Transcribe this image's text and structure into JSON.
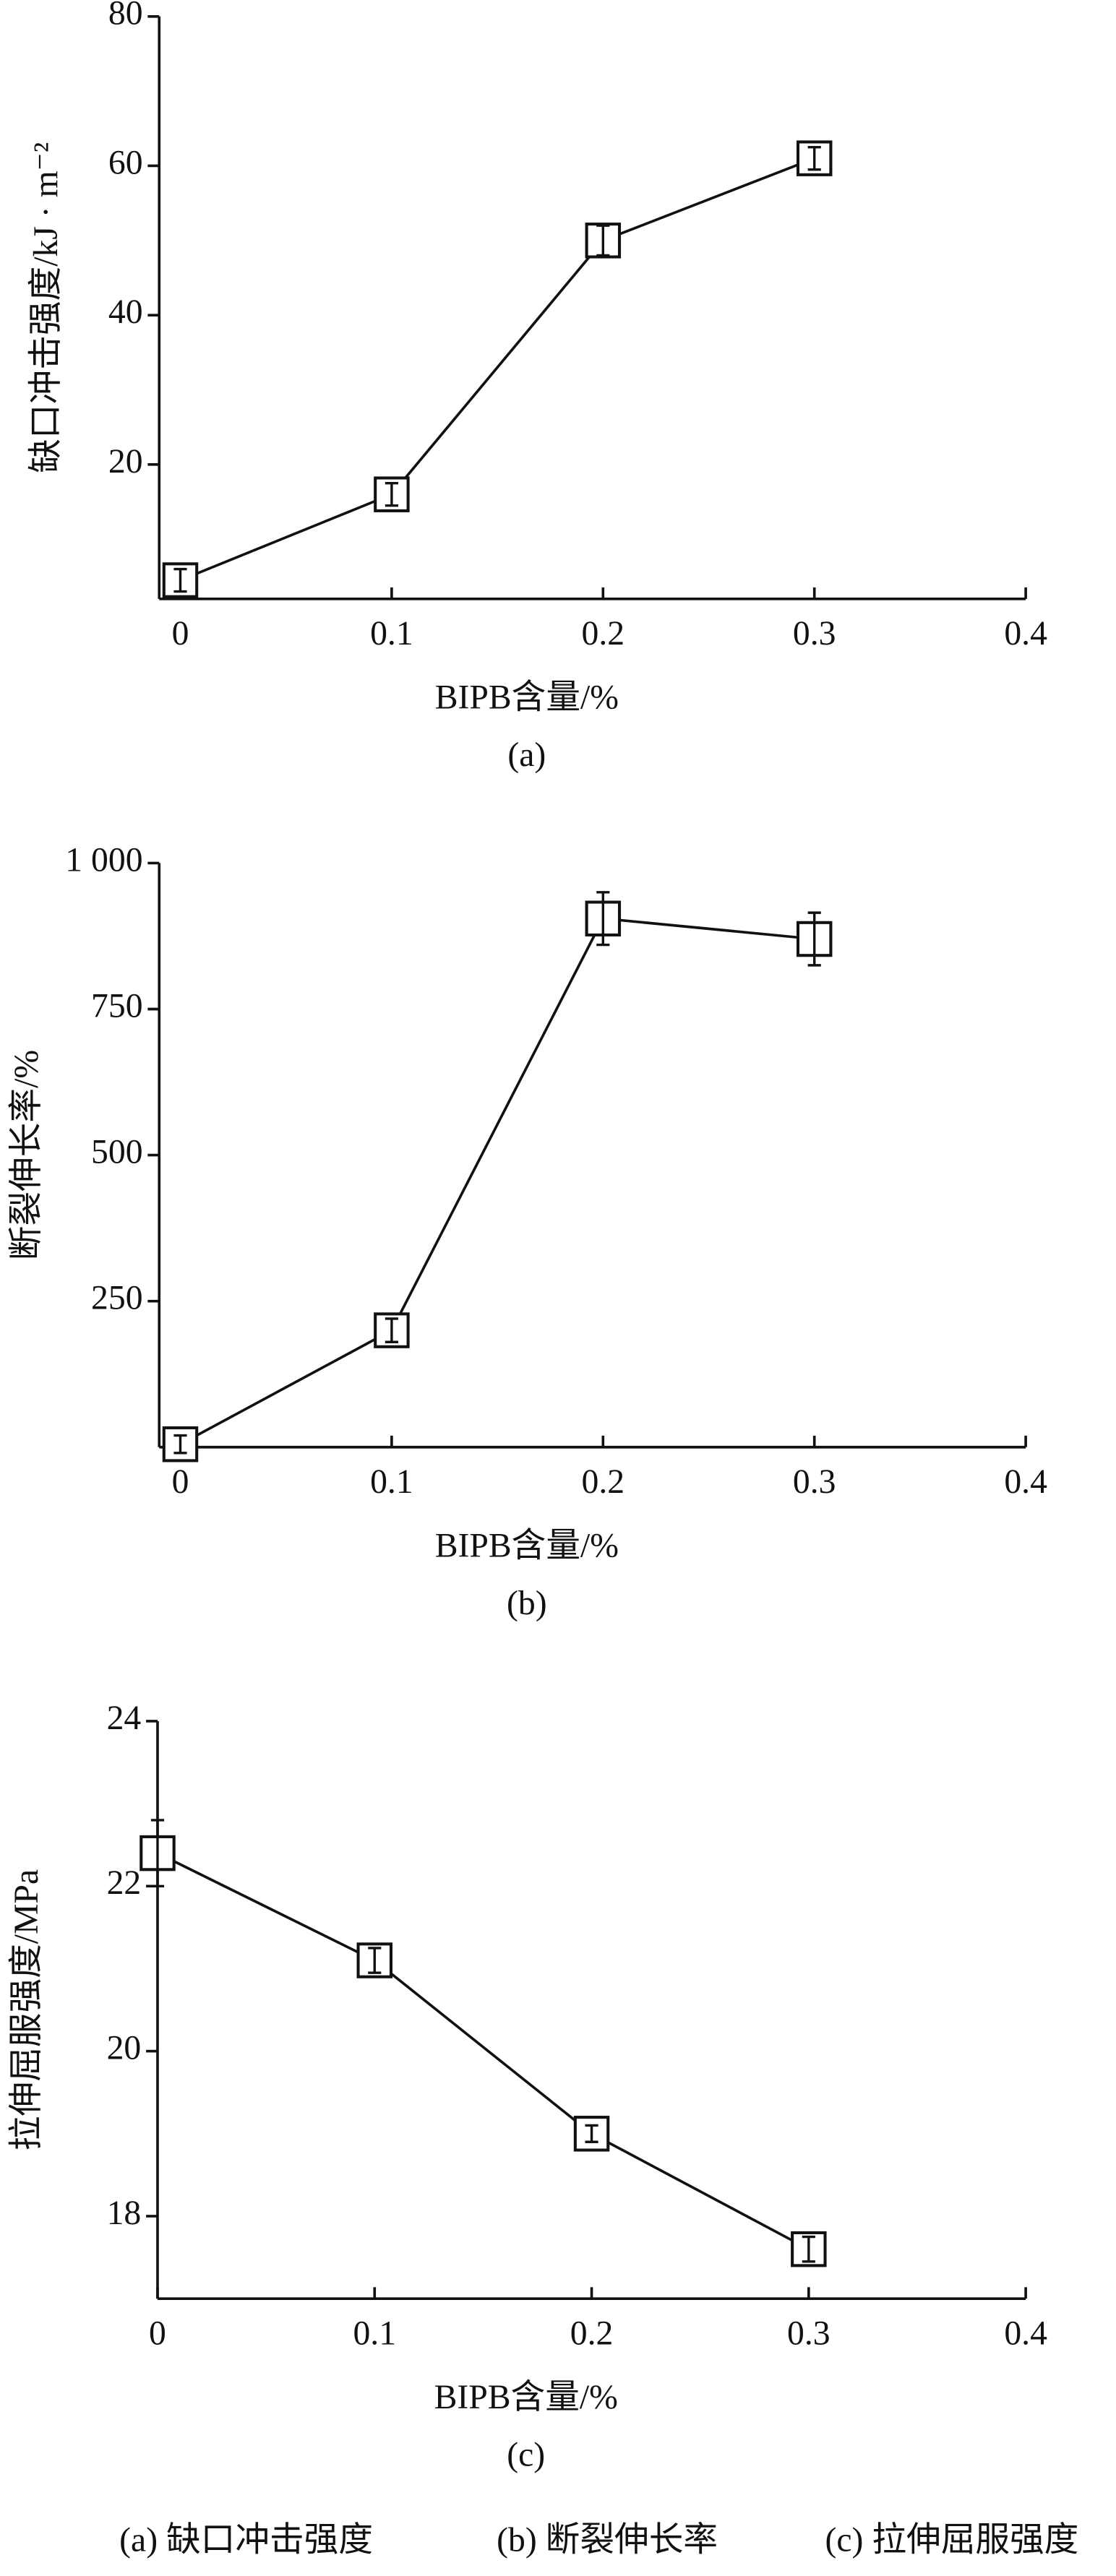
{
  "chart_data": [
    {
      "type": "line",
      "xlabel": "BIPB含量/%",
      "ylabel": "缺口冲击强度/kJ · m⁻²",
      "subcaption": "(a)",
      "x": [
        0,
        0.1,
        0.2,
        0.3
      ],
      "values": [
        4.5,
        16,
        50,
        61
      ],
      "errors": [
        1.5,
        1.5,
        2,
        1.5
      ],
      "color": "#111111",
      "xlim": [
        -0.01,
        0.4
      ],
      "xticks": [
        0,
        0.1,
        0.2,
        0.3,
        0.4
      ],
      "ylim": [
        2,
        80
      ],
      "yticks": [
        20,
        40,
        60,
        80
      ]
    },
    {
      "type": "line",
      "xlabel": "BIPB含量/%",
      "ylabel": "断裂伸长率/%",
      "subcaption": "(b)",
      "x": [
        0,
        0.1,
        0.2,
        0.3
      ],
      "values": [
        5,
        200,
        905,
        870
      ],
      "errors": [
        15,
        20,
        45,
        45
      ],
      "color": "#111111",
      "xlim": [
        -0.01,
        0.4
      ],
      "xticks": [
        0,
        0.1,
        0.2,
        0.3,
        0.4
      ],
      "ylim": [
        0,
        1000
      ],
      "yticks": [
        250,
        500,
        750,
        {
          "value": 1000,
          "label": "1 000"
        }
      ]
    },
    {
      "type": "line",
      "xlabel": "BIPB含量/%",
      "ylabel": "拉伸屈服强度/MPa",
      "subcaption": "(c)",
      "x": [
        0,
        0.1,
        0.2,
        0.3
      ],
      "values": [
        22.4,
        21.1,
        19.0,
        17.6
      ],
      "errors": [
        0.4,
        0.15,
        0.1,
        0.15
      ],
      "color": "#111111",
      "xlim": [
        0,
        0.4
      ],
      "xticks": [
        0,
        0.1,
        0.2,
        0.3,
        0.4
      ],
      "ylim": [
        17,
        24
      ],
      "yticks": [
        18,
        20,
        22,
        24
      ]
    }
  ],
  "caption": [
    "(a) 缺口冲击强度",
    "(b) 断裂伸长率",
    "(c) 拉伸屈服强度"
  ]
}
